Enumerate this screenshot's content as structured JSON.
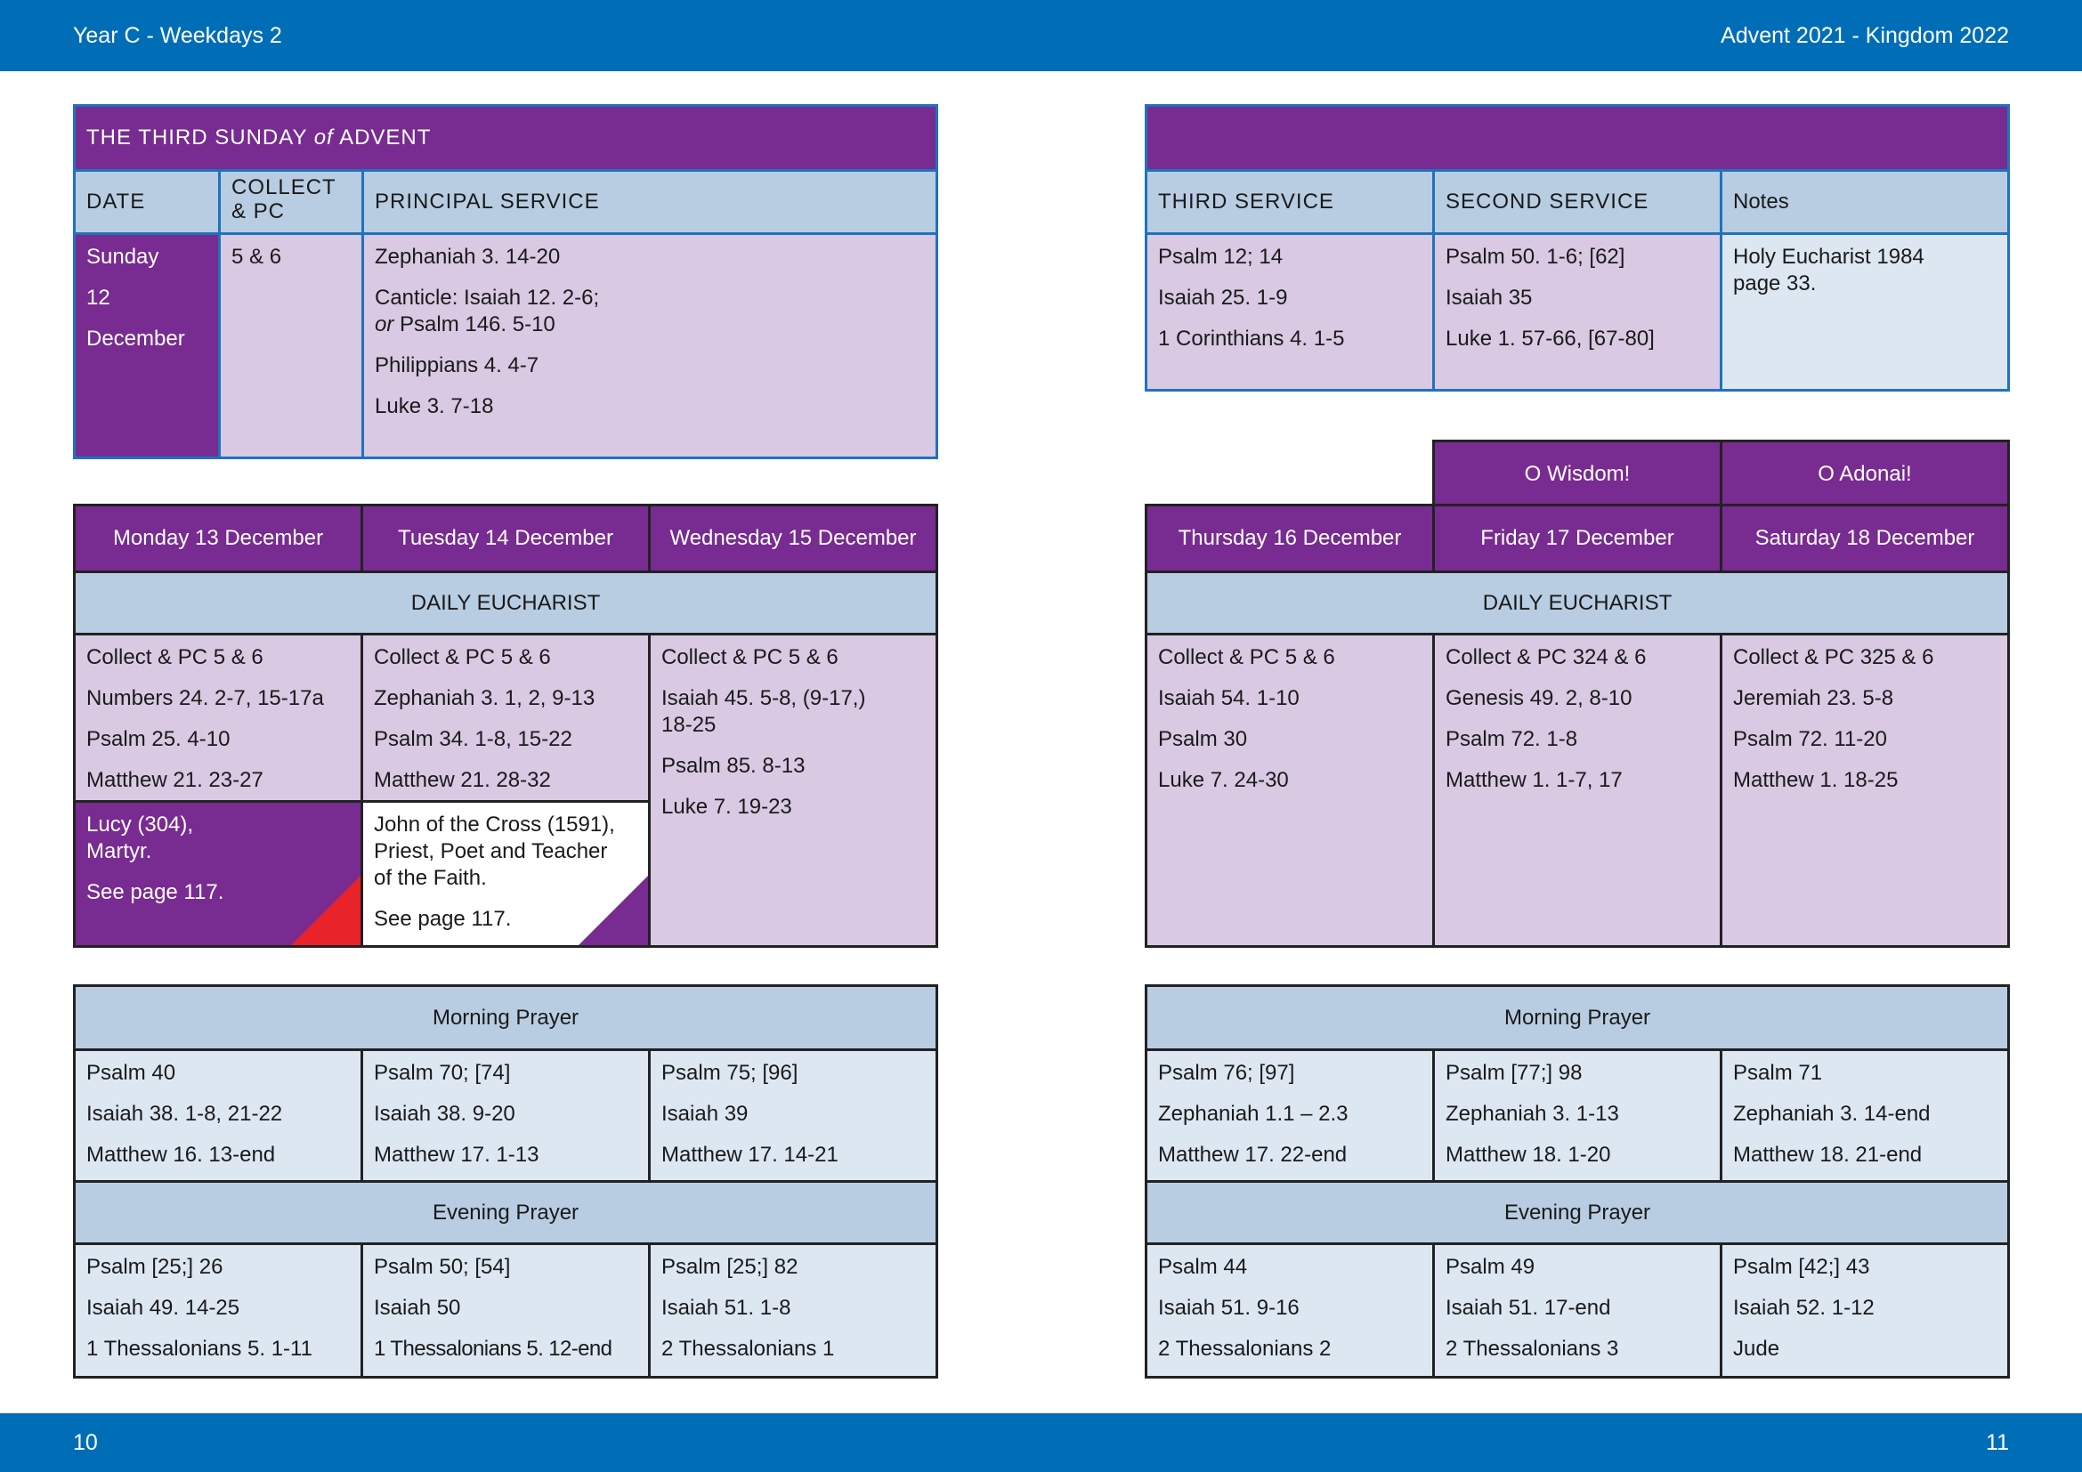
{
  "header": {
    "left": "Year C - Weekdays 2",
    "right": "Advent  2021 - Kingdom 2022"
  },
  "footer": {
    "left_page": "10",
    "right_page": "11"
  },
  "sunday": {
    "title_pre": "THE THIRD SUNDAY ",
    "title_of": "of",
    "title_post": " ADVENT",
    "col_date": "DATE",
    "col_collect_1": "COLLECT",
    "col_collect_2": "& PC",
    "col_principal": "PRINCIPAL SERVICE",
    "date": [
      "Sunday",
      "12",
      "December"
    ],
    "collect": "5 & 6",
    "principal": {
      "reading1": "Zephaniah 3. 14-20",
      "canticle_1": "Canticle: Isaiah 12. 2-6;",
      "canticle_or": "or",
      "canticle_2": " Psalm 146. 5-10",
      "reading2": "Philippians 4. 4-7",
      "gospel": "Luke 3. 7-18"
    },
    "col_third": "THIRD SERVICE",
    "col_second": "SECOND SERVICE",
    "col_notes": "Notes",
    "third": [
      "Psalm 12; 14",
      "Isaiah 25. 1-9",
      "1 Corinthians 4. 1-5"
    ],
    "second": [
      "Psalm 50. 1-6; [62]",
      "Isaiah 35",
      "Luke 1. 57-66, [67-80]"
    ],
    "notes": [
      "Holy Eucharist 1984",
      "page 33."
    ]
  },
  "weekdays_left": {
    "days": [
      "Monday 13 December",
      "Tuesday 14 December",
      "Wednesday 15 December"
    ],
    "eucharist_label": "DAILY EUCHARIST",
    "eucharist": [
      [
        "Collect & PC 5 & 6",
        "Numbers 24. 2-7, 15-17a",
        "Psalm 25. 4-10",
        "Matthew 21. 23-27"
      ],
      [
        "Collect & PC 5 & 6",
        "Zephaniah 3. 1, 2, 9-13",
        "Psalm 34. 1-8, 15-22",
        "Matthew 21. 28-32"
      ],
      [
        "Collect & PC 5 & 6",
        "Isaiah 45. 5-8, (9-17,)",
        "18-25",
        "Psalm 85. 8-13",
        "Luke 7. 19-23"
      ]
    ],
    "lucy": [
      "Lucy (304),",
      "Martyr.",
      "See page 117."
    ],
    "john": [
      "John of the Cross (1591),",
      "Priest, Poet and Teacher",
      "of the Faith.",
      "See page 117."
    ],
    "morning_label": "Morning Prayer",
    "morning": [
      [
        "Psalm 40",
        "Isaiah 38. 1-8, 21-22",
        "Matthew 16. 13-end"
      ],
      [
        "Psalm 70; [74]",
        "Isaiah 38. 9-20",
        "Matthew 17. 1-13"
      ],
      [
        "Psalm 75; [96]",
        "Isaiah 39",
        "Matthew 17. 14-21"
      ]
    ],
    "evening_label": "Evening Prayer",
    "evening": [
      [
        "Psalm [25;] 26",
        "Isaiah 49. 14-25",
        "1 Thessalonians 5. 1-11"
      ],
      [
        "Psalm 50; [54]",
        "Isaiah 50",
        "1 Thessalonians 5. 12-end"
      ],
      [
        "Psalm [25;] 82",
        "Isaiah 51. 1-8",
        "2 Thessalonians 1"
      ]
    ]
  },
  "weekdays_right": {
    "antiphons": [
      "O Wisdom!",
      "O Adonai!"
    ],
    "days": [
      "Thursday 16 December",
      "Friday 17 December",
      "Saturday 18 December"
    ],
    "eucharist_label": "DAILY EUCHARIST",
    "eucharist": [
      [
        "Collect & PC 5 & 6",
        "Isaiah 54. 1-10",
        "Psalm 30",
        "Luke 7. 24-30"
      ],
      [
        "Collect & PC 324 & 6",
        "Genesis 49. 2, 8-10",
        "Psalm 72. 1-8",
        "Matthew 1. 1-7, 17"
      ],
      [
        "Collect & PC 325 & 6",
        "Jeremiah 23. 5-8",
        "Psalm 72. 11-20",
        "Matthew 1. 18-25"
      ]
    ],
    "morning_label": "Morning Prayer",
    "morning": [
      [
        "Psalm 76; [97]",
        "Zephaniah 1.1 – 2.3",
        "Matthew 17. 22-end"
      ],
      [
        "Psalm [77;] 98",
        "Zephaniah 3. 1-13",
        "Matthew 18. 1-20"
      ],
      [
        "Psalm 71",
        "Zephaniah 3. 14-end",
        "Matthew 18. 21-end"
      ]
    ],
    "evening_label": "Evening Prayer",
    "evening": [
      [
        "Psalm 44",
        "Isaiah 51. 9-16",
        "2 Thessalonians 2"
      ],
      [
        "Psalm 49",
        "Isaiah 51. 17-end",
        "2 Thessalonians 3"
      ],
      [
        "Psalm [42;] 43",
        "Isaiah 52. 1-12",
        "Jude"
      ]
    ]
  },
  "colors": {
    "bar_blue": "#006eb7",
    "purple": "#782b90",
    "lilac": "#d9c9e3",
    "header_blue": "#b8cde2",
    "light_blue": "#dce7f2",
    "lucy_red": "#e8232a"
  }
}
